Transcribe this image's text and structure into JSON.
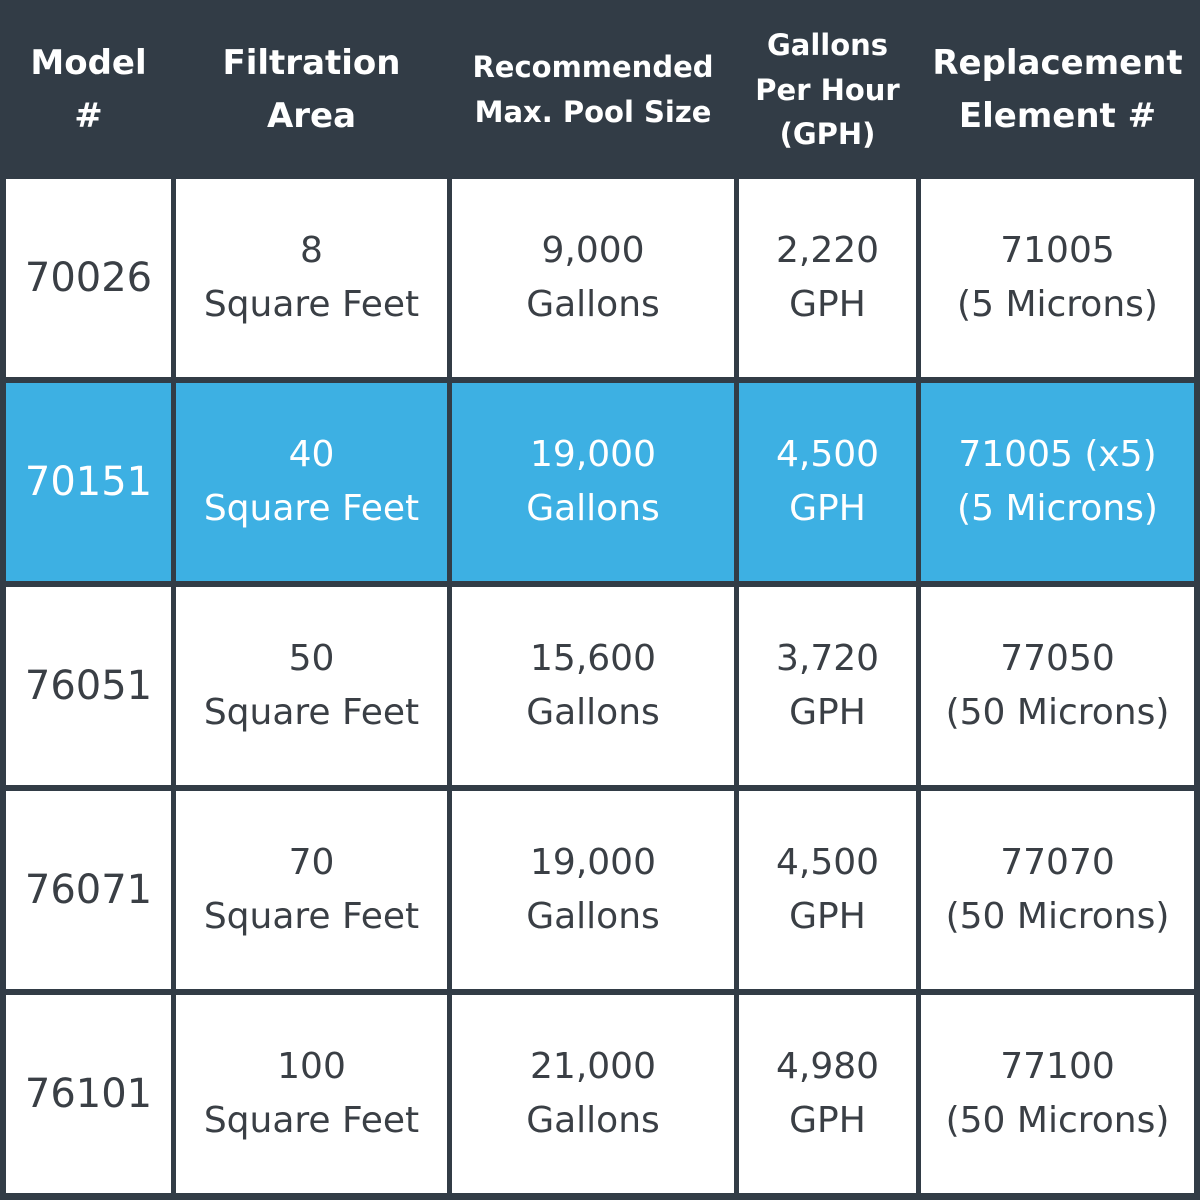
{
  "table": {
    "headers": [
      [
        "Model",
        "#"
      ],
      [
        "Filtration",
        "Area"
      ],
      [
        "Recommended",
        "Max. Pool Size"
      ],
      [
        "Gallons",
        "Per Hour",
        "(GPH)"
      ],
      [
        "Replacement",
        "Element #"
      ]
    ],
    "rows": [
      {
        "model": "70026",
        "area": [
          "8",
          "Square Feet"
        ],
        "pool": [
          "9,000",
          "Gallons"
        ],
        "gph": [
          "2,220",
          "GPH"
        ],
        "element": [
          "71005",
          "(5 Microns)"
        ]
      },
      {
        "model": "70151",
        "area": [
          "40",
          "Square Feet"
        ],
        "pool": [
          "19,000",
          "Gallons"
        ],
        "gph": [
          "4,500",
          "GPH"
        ],
        "element": [
          "71005 (x5)",
          "(5 Microns)"
        ]
      },
      {
        "model": "76051",
        "area": [
          "50",
          "Square Feet"
        ],
        "pool": [
          "15,600",
          "Gallons"
        ],
        "gph": [
          "3,720",
          "GPH"
        ],
        "element": [
          "77050",
          "(50 Microns)"
        ]
      },
      {
        "model": "76071",
        "area": [
          "70",
          "Square Feet"
        ],
        "pool": [
          "19,000",
          "Gallons"
        ],
        "gph": [
          "4,500",
          "GPH"
        ],
        "element": [
          "77070",
          "(50 Microns)"
        ]
      },
      {
        "model": "76101",
        "area": [
          "100",
          "Square Feet"
        ],
        "pool": [
          "21,000",
          "Gallons"
        ],
        "gph": [
          "4,980",
          "GPH"
        ],
        "element": [
          "77100",
          "(50 Microns)"
        ]
      }
    ],
    "highlighted_row": 1,
    "colors": {
      "header_bg": "#323c46",
      "grid_lines": "#323c46",
      "highlight_bg": "#3db0e3",
      "body_bg": "#ffffff",
      "body_text": "#3a3f45",
      "header_text": "#ffffff"
    }
  }
}
